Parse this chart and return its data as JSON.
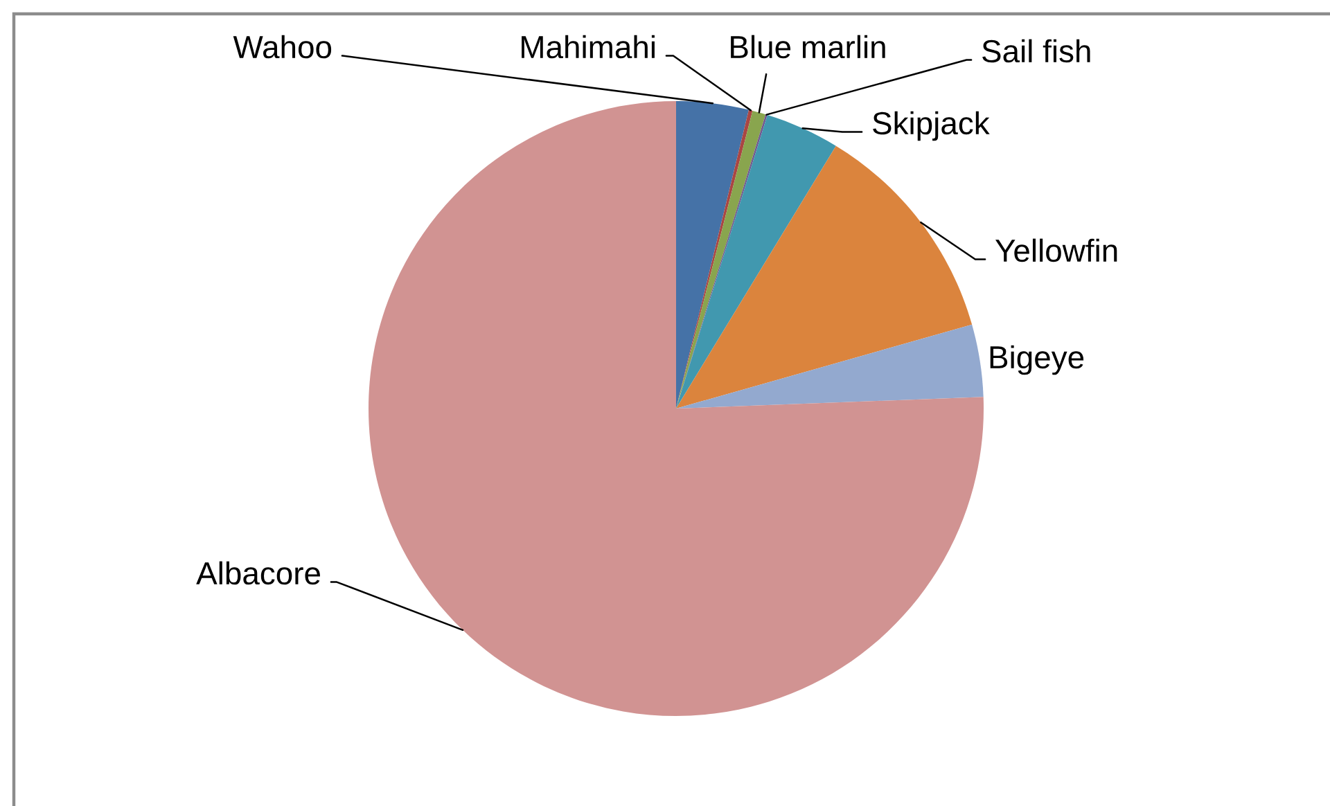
{
  "chart_data": {
    "type": "pie",
    "categories": [
      "Wahoo",
      "Mahimahi",
      "Blue marlin",
      "Sail fish",
      "Skipjack",
      "Yellowfin",
      "Bigeye",
      "Albacore"
    ],
    "values": [
      3.8,
      0.2,
      0.7,
      0.1,
      3.9,
      11.9,
      3.8,
      75.6
    ],
    "colors": [
      "#4572a7",
      "#aa4643",
      "#89a54e",
      "#71588f",
      "#4198af",
      "#db843d",
      "#93a9cf",
      "#d19392"
    ]
  }
}
